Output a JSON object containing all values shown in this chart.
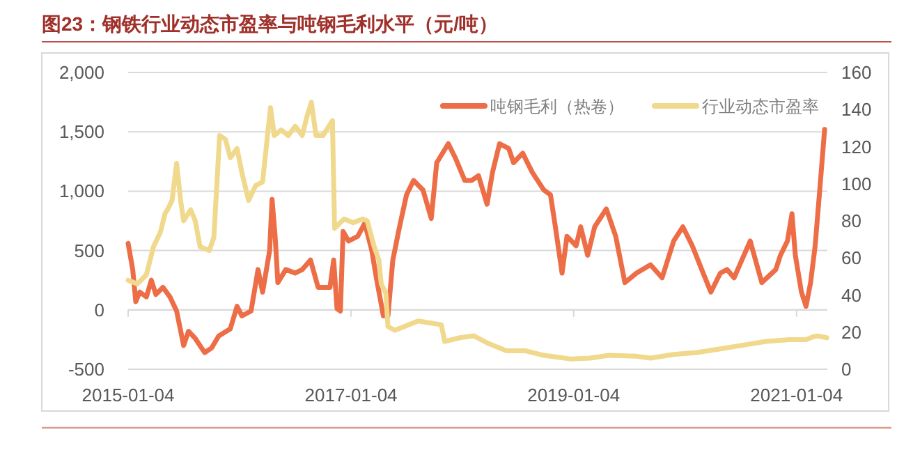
{
  "chart_data": {
    "type": "line",
    "title": "图23：钢铁行业动态市盈率与吨钢毛利水平（元/吨）",
    "xlim": [
      "2015-01-04",
      "2021-04-15"
    ],
    "xticks": [
      "2015-01-04",
      "2017-01-04",
      "2019-01-04",
      "2021-01-04"
    ],
    "ylim": [
      -500,
      2000
    ],
    "yticks": [
      {
        "value": -500,
        "label": "-500"
      },
      0,
      {
        "value": 500,
        "label": "500"
      },
      {
        "value": 1000,
        "label": "1,000"
      },
      {
        "value": 1500,
        "label": "1,500"
      },
      {
        "value": 2000,
        "label": "2,000"
      }
    ],
    "y2lim": [
      0,
      160
    ],
    "y2ticks": [
      0,
      20,
      40,
      60,
      80,
      100,
      120,
      140,
      160
    ],
    "grid": "y",
    "legend": "top right",
    "marker": "none",
    "line_style": "solid",
    "series": [
      {
        "name": "吨钢毛利（热卷）",
        "color": "#ed6d46",
        "x": [
          "2015-01-04",
          "2015-01-19",
          "2015-01-29",
          "2015-02-11",
          "2015-03-05",
          "2015-03-21",
          "2015-04-05",
          "2015-04-28",
          "2015-05-21",
          "2015-06-12",
          "2015-07-05",
          "2015-07-21",
          "2015-08-12",
          "2015-09-12",
          "2015-10-05",
          "2015-10-28",
          "2015-12-05",
          "2015-12-27",
          "2016-01-12",
          "2016-02-11",
          "2016-03-05",
          "2016-03-20",
          "2016-04-12",
          "2016-04-20",
          "2016-04-30",
          "2016-05-09",
          "2016-06-04",
          "2016-07-05",
          "2016-07-28",
          "2016-08-24",
          "2016-09-18",
          "2016-10-27",
          "2016-11-08",
          "2016-11-19",
          "2016-11-30",
          "2016-12-09",
          "2016-12-27",
          "2017-01-26",
          "2017-02-18",
          "2017-03-13",
          "2017-03-28",
          "2017-04-20",
          "2017-05-05",
          "2017-05-21",
          "2017-06-12",
          "2017-07-05",
          "2017-07-28",
          "2017-08-28",
          "2017-09-24",
          "2017-10-12",
          "2017-11-19",
          "2017-12-12",
          "2018-01-12",
          "2018-02-03",
          "2018-02-26",
          "2018-03-26",
          "2018-04-13",
          "2018-05-06",
          "2018-06-05",
          "2018-06-21",
          "2018-07-21",
          "2018-08-21",
          "2018-09-28",
          "2018-10-20",
          "2018-11-05",
          "2018-11-27",
          "2018-12-13",
          "2019-01-12",
          "2019-01-27",
          "2019-02-19",
          "2019-03-14",
          "2019-04-21",
          "2019-05-22",
          "2019-06-21",
          "2019-07-29",
          "2019-09-13",
          "2019-10-21",
          "2019-11-28",
          "2019-12-28",
          "2020-01-28",
          "2020-02-28",
          "2020-03-29",
          "2020-04-29",
          "2020-05-21",
          "2020-06-13",
          "2020-08-05",
          "2020-09-12",
          "2020-10-28",
          "2020-11-12",
          "2020-12-05",
          "2020-12-20",
          "2020-12-31",
          "2021-01-20",
          "2021-02-04",
          "2021-02-19",
          "2021-03-06",
          "2021-03-21",
          "2021-04-06"
        ],
        "values": [
          560,
          340,
          70,
          150,
          110,
          250,
          130,
          190,
          110,
          -10,
          -300,
          -180,
          -240,
          -360,
          -320,
          -220,
          -160,
          30,
          -50,
          -10,
          340,
          150,
          500,
          930,
          620,
          230,
          340,
          310,
          340,
          420,
          190,
          190,
          420,
          10,
          -10,
          660,
          580,
          620,
          730,
          500,
          270,
          -50,
          -50,
          420,
          700,
          970,
          1090,
          1010,
          770,
          1240,
          1400,
          1280,
          1090,
          1090,
          1130,
          890,
          1160,
          1400,
          1360,
          1240,
          1320,
          1160,
          1010,
          970,
          700,
          310,
          620,
          540,
          700,
          460,
          700,
          850,
          620,
          230,
          310,
          380,
          270,
          580,
          700,
          540,
          340,
          150,
          310,
          340,
          270,
          580,
          230,
          340,
          460,
          580,
          810,
          460,
          150,
          30,
          230,
          540,
          1010,
          1520
        ]
      },
      {
        "name": "行业动态市盈率",
        "color": "#f0d98c",
        "axis": "y2",
        "x": [
          "2015-01-04",
          "2015-02-03",
          "2015-03-05",
          "2015-03-28",
          "2015-04-20",
          "2015-05-05",
          "2015-05-13",
          "2015-05-28",
          "2015-06-12",
          "2015-06-25",
          "2015-07-05",
          "2015-07-28",
          "2015-08-12",
          "2015-08-28",
          "2015-09-27",
          "2015-10-12",
          "2015-10-31",
          "2015-11-19",
          "2015-12-05",
          "2015-12-27",
          "2016-01-12",
          "2016-02-03",
          "2016-02-26",
          "2016-03-20",
          "2016-04-05",
          "2016-04-15",
          "2016-04-27",
          "2016-05-20",
          "2016-06-12",
          "2016-07-05",
          "2016-07-28",
          "2016-08-12",
          "2016-08-27",
          "2016-09-11",
          "2016-10-04",
          "2016-11-04",
          "2016-11-11",
          "2016-12-12",
          "2017-01-11",
          "2017-02-11",
          "2017-02-26",
          "2017-03-21",
          "2017-04-05",
          "2017-04-13",
          "2017-04-28",
          "2017-05-05",
          "2017-05-28",
          "2017-07-13",
          "2017-08-12",
          "2017-09-19",
          "2017-10-27",
          "2017-11-07",
          "2017-12-27",
          "2018-02-11",
          "2018-03-29",
          "2018-05-29",
          "2018-07-29",
          "2018-09-28",
          "2018-12-28",
          "2019-02-27",
          "2019-04-29",
          "2019-07-29",
          "2019-09-13",
          "2019-11-28",
          "2020-02-12",
          "2020-04-29",
          "2020-07-13",
          "2020-09-27",
          "2020-12-13",
          "2021-02-04",
          "2021-02-27",
          "2021-03-14",
          "2021-04-13"
        ],
        "values": [
          48,
          46,
          51,
          66,
          74,
          84,
          86,
          91,
          111,
          91,
          80,
          86,
          80,
          66,
          64,
          71,
          126,
          124,
          114,
          119,
          106,
          91,
          99,
          101,
          126,
          141,
          126,
          129,
          126,
          131,
          126,
          136,
          144,
          126,
          126,
          134,
          76,
          81,
          79,
          81,
          80,
          66,
          59,
          46,
          41,
          23,
          21,
          24,
          26,
          25,
          24,
          15,
          17,
          18,
          14,
          10,
          10,
          7.5,
          5.5,
          6,
          7.5,
          7,
          6,
          8,
          9,
          11,
          13,
          15,
          16,
          16,
          17.5,
          18,
          17
        ]
      }
    ]
  }
}
